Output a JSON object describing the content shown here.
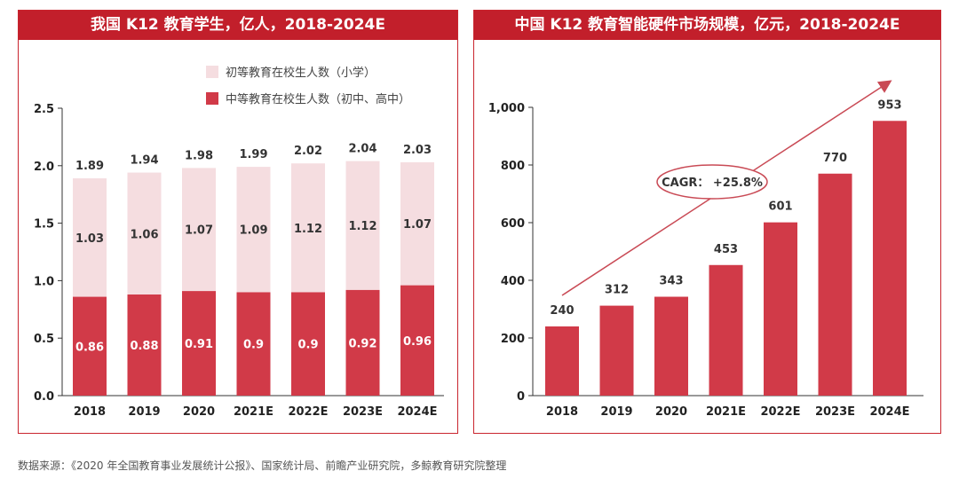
{
  "colors": {
    "header": "#c21f2b",
    "dark": "#d13a48",
    "light": "#f5dde0",
    "border": "#c9252f",
    "arrow": "#c94a55"
  },
  "chart_data": [
    {
      "type": "bar",
      "stacked": true,
      "title": "我国 K12 教育学生，亿人，2018-2024E",
      "categories": [
        "2018",
        "2019",
        "2020",
        "2021E",
        "2022E",
        "2023E",
        "2024E"
      ],
      "series": [
        {
          "name": "中等教育在校生人数（初中、高中）",
          "values": [
            0.86,
            0.88,
            0.91,
            0.9,
            0.9,
            0.92,
            0.96
          ]
        },
        {
          "name": "初等教育在校生人数（小学）",
          "values": [
            1.03,
            1.06,
            1.07,
            1.09,
            1.12,
            1.12,
            1.07
          ]
        }
      ],
      "totals": [
        1.89,
        1.94,
        1.98,
        1.99,
        2.02,
        2.04,
        2.03
      ],
      "yticks": [
        "0.0",
        "0.5",
        "1.0",
        "1.5",
        "2.0",
        "2.5"
      ],
      "ylim": [
        0,
        2.5
      ],
      "legend": "top-right",
      "grid": false
    },
    {
      "type": "bar",
      "title": "中国 K12 教育智能硬件市场规模，亿元，2018-2024E",
      "categories": [
        "2018",
        "2019",
        "2020",
        "2021E",
        "2022E",
        "2023E",
        "2024E"
      ],
      "values": [
        240,
        312,
        343,
        453,
        601,
        770,
        953
      ],
      "yticks": [
        "0",
        "200",
        "400",
        "600",
        "800",
        "1,000"
      ],
      "ylim": [
        0,
        1000
      ],
      "annotation": "CAGR： +25.8%",
      "grid": false
    }
  ],
  "source": "数据来源：《2020 年全国教育事业发展统计公报》、国家统计局、前瞻产业研究院，多鲸教育研究院整理"
}
